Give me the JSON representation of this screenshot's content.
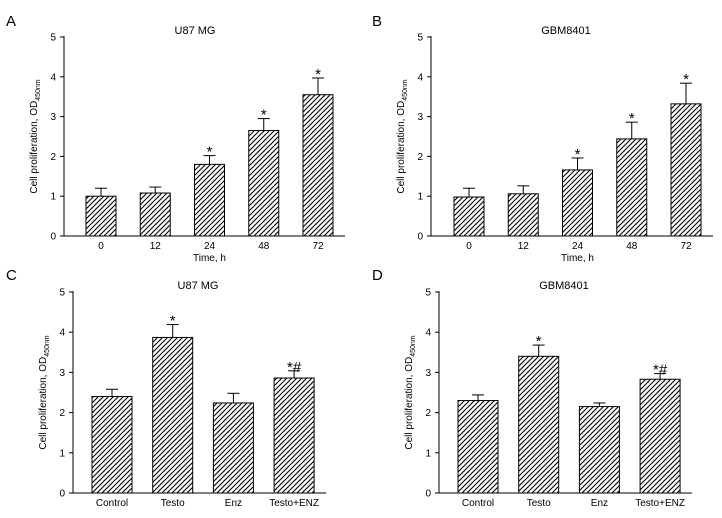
{
  "figure": {
    "ylabel_main": "Cell proliferation, OD",
    "ylabel_sub": "450nm",
    "colors": {
      "ink": "#000000",
      "bar_fill_bg": "#ffffff",
      "hatch": "#000000"
    }
  },
  "chart_data": [
    {
      "panel": "A",
      "type": "bar",
      "title": "U87 MG",
      "xlabel": "Time, h",
      "ylabel": "Cell proliferation, OD450nm",
      "ylim": [
        0,
        5
      ],
      "yticks": [
        0,
        1,
        2,
        3,
        4,
        5
      ],
      "categories": [
        "0",
        "12",
        "24",
        "48",
        "72"
      ],
      "values": [
        1.0,
        1.08,
        1.8,
        2.65,
        3.55
      ],
      "errors": [
        0.2,
        0.15,
        0.22,
        0.3,
        0.42
      ],
      "annotations": [
        "",
        "",
        "*",
        "*",
        "*"
      ]
    },
    {
      "panel": "B",
      "type": "bar",
      "title": "GBM8401",
      "xlabel": "Time, h",
      "ylabel": "Cell proliferation, OD450nm",
      "ylim": [
        0,
        5
      ],
      "yticks": [
        0,
        1,
        2,
        3,
        4,
        5
      ],
      "categories": [
        "0",
        "12",
        "24",
        "48",
        "72"
      ],
      "values": [
        0.98,
        1.06,
        1.66,
        2.44,
        3.32
      ],
      "errors": [
        0.22,
        0.2,
        0.3,
        0.42,
        0.52
      ],
      "annotations": [
        "",
        "",
        "*",
        "*",
        "*"
      ]
    },
    {
      "panel": "C",
      "type": "bar",
      "title": "U87 MG",
      "xlabel": "",
      "ylabel": "Cell proliferation, OD450nm",
      "ylim": [
        0,
        5
      ],
      "yticks": [
        0,
        1,
        2,
        3,
        4,
        5
      ],
      "categories": [
        "Control",
        "Testo",
        "Enz",
        "Testo+ENZ"
      ],
      "values": [
        2.4,
        3.87,
        2.24,
        2.86
      ],
      "errors": [
        0.18,
        0.32,
        0.24,
        0.18
      ],
      "annotations": [
        "",
        "*",
        "",
        "*#"
      ]
    },
    {
      "panel": "D",
      "type": "bar",
      "title": "GBM8401",
      "xlabel": "",
      "ylabel": "Cell proliferation, OD450nm",
      "ylim": [
        0,
        5
      ],
      "yticks": [
        0,
        1,
        2,
        3,
        4,
        5
      ],
      "categories": [
        "Control",
        "Testo",
        "Enz",
        "Testo+ENZ"
      ],
      "values": [
        2.3,
        3.4,
        2.15,
        2.83
      ],
      "errors": [
        0.14,
        0.28,
        0.09,
        0.14
      ],
      "annotations": [
        "",
        "*",
        "",
        "*#"
      ]
    }
  ]
}
